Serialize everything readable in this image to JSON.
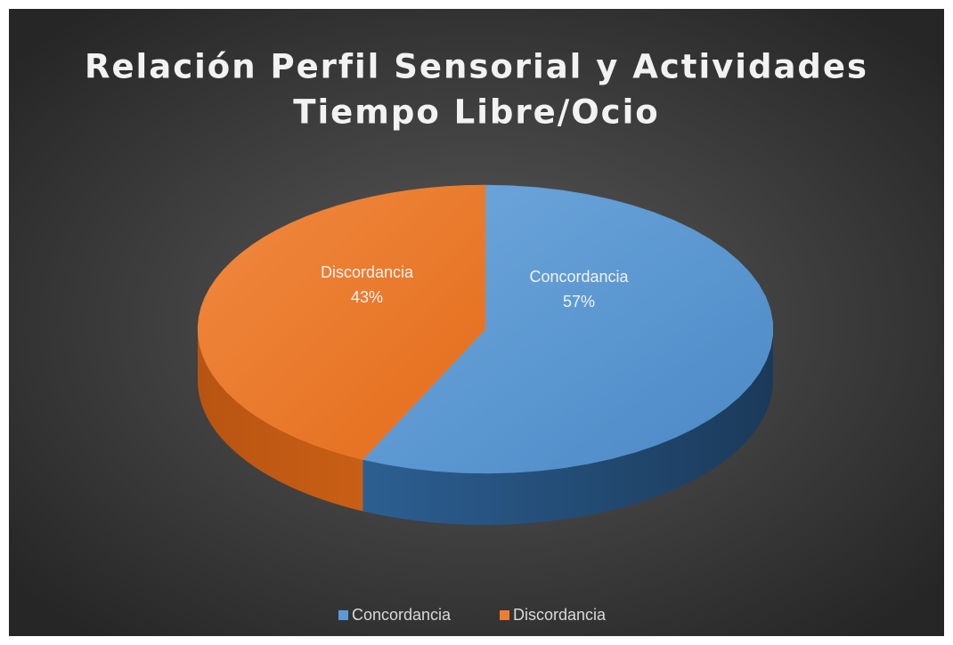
{
  "chart_data": {
    "type": "pie3d",
    "title": [
      "Relación Perfil Sensorial y Actividades",
      "Tiempo Libre/Ocio"
    ],
    "categories": [
      "Concordancia",
      "Discordancia"
    ],
    "values": [
      57,
      43
    ],
    "value_labels": [
      "57%",
      "43%"
    ],
    "colors": [
      "#5b9bd5",
      "#ed7d31"
    ],
    "legend": "bottom"
  }
}
